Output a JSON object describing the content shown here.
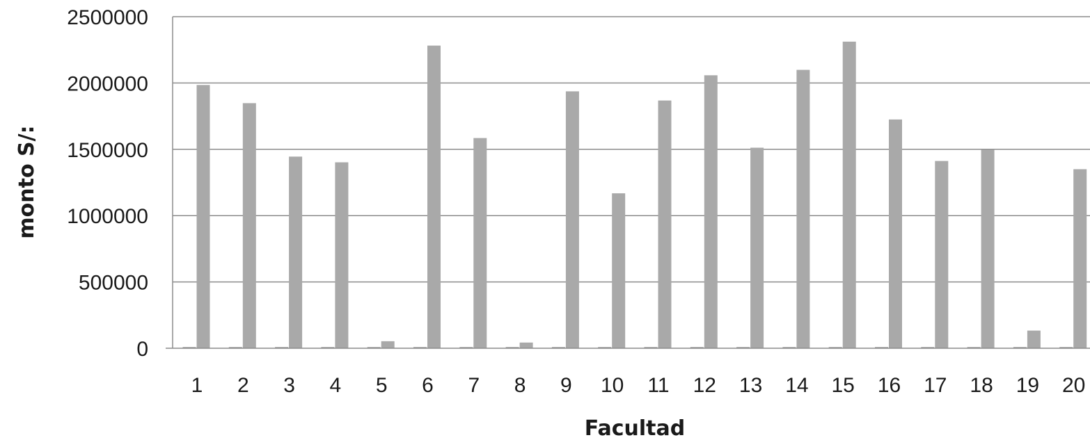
{
  "chart_data": {
    "type": "bar",
    "title": "",
    "xlabel": "Facultad",
    "ylabel": "monto S/:",
    "ylim": [
      0,
      2500000
    ],
    "yticks": [
      "0",
      "500000",
      "1000000",
      "1500000",
      "2000000",
      "2500000"
    ],
    "grid": true,
    "legend": "none",
    "categories": [
      "1",
      "2",
      "3",
      "4",
      "5",
      "6",
      "7",
      "8",
      "9",
      "10",
      "11",
      "12",
      "13",
      "14",
      "15",
      "16",
      "17",
      "18",
      "19",
      "20"
    ],
    "series": [
      {
        "color": "#7f7f7f",
        "values": [
          8000,
          8000,
          8000,
          8000,
          8000,
          8000,
          8000,
          8000,
          8000,
          8000,
          8000,
          8000,
          8000,
          8000,
          8000,
          8000,
          8000,
          8000,
          8000,
          8000
        ]
      },
      {
        "color": "#a9a9a9",
        "values": [
          1985000,
          1848000,
          1445000,
          1402000,
          53000,
          2282000,
          1585000,
          43000,
          1937000,
          1168000,
          1868000,
          2058000,
          1512000,
          2099000,
          2312000,
          1725000,
          1412000,
          1498000,
          133000,
          1350000
        ]
      }
    ]
  }
}
